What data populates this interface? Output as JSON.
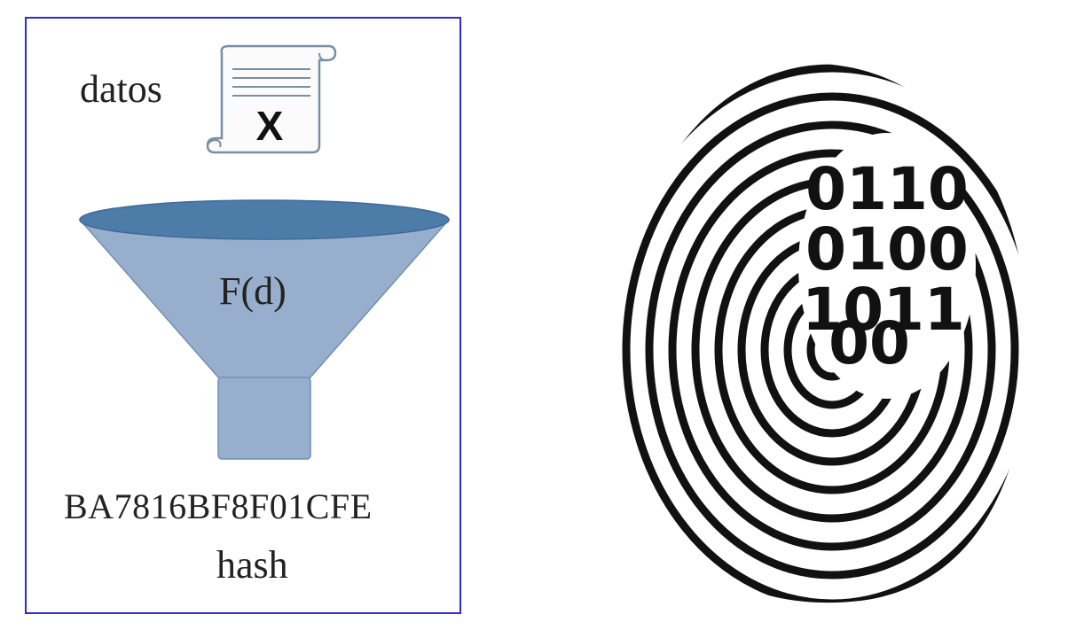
{
  "diagram": {
    "data_label": "datos",
    "scroll_mark": "X",
    "function_label": "F(d)",
    "hash_value": "BA7816BF8F01CFE",
    "hash_label": "hash",
    "fingerprint_bits": [
      "0110",
      "0100",
      "1011",
      "00"
    ],
    "colors": {
      "border": "#2b2bd8",
      "funnel_body": "#97afcd",
      "funnel_top": "#4e7ca9",
      "scroll_outline": "#7a8fa6",
      "fingerprint": "#111111"
    },
    "icons": [
      "scroll-document-icon",
      "funnel-icon",
      "fingerprint-icon"
    ]
  }
}
